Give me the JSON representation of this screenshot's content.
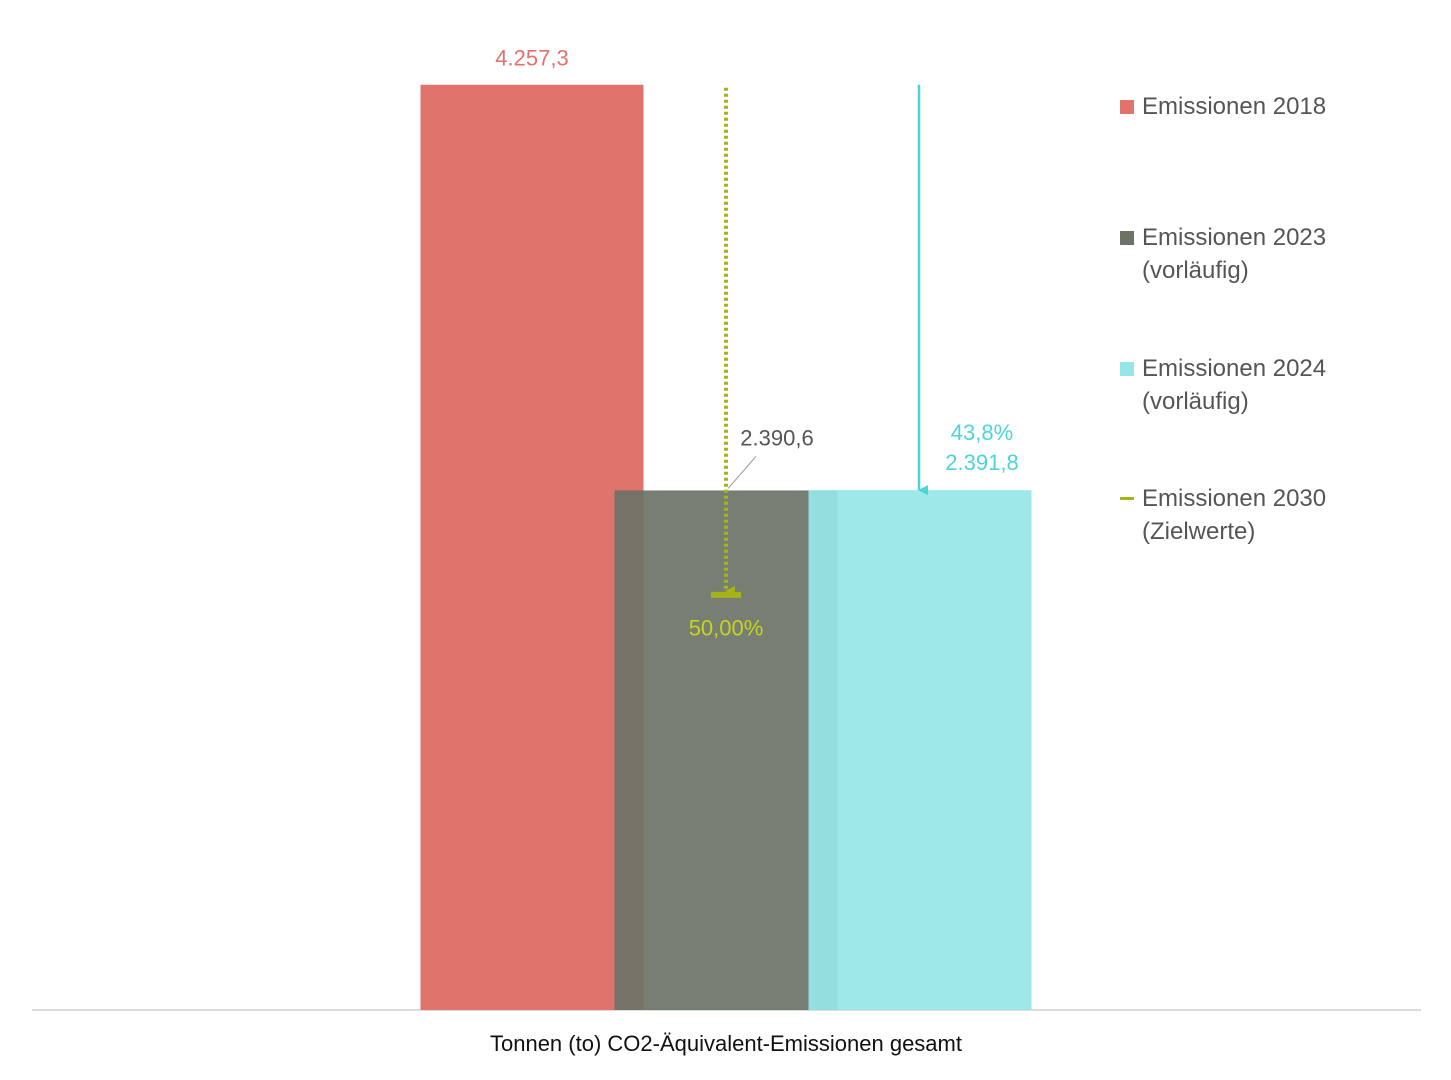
{
  "chart_data": {
    "type": "bar",
    "category": "Tonnen (to) CO2-Äquivalent-Emissionen gesamt",
    "ylim": [
      0,
      4500
    ],
    "series": [
      {
        "name": "Emissionen 2018",
        "color": "#e0736b",
        "values": [
          4257.3
        ],
        "value_labels": [
          "4.257,3"
        ]
      },
      {
        "name": "Emissionen 2023 (vorläufig)",
        "color": "#6b7367",
        "values": [
          2390.6
        ],
        "value_labels": [
          "2.390,6"
        ]
      },
      {
        "name": "Emissionen 2024 (vorläufig)",
        "color": "#96e6e8",
        "values": [
          2391.8
        ],
        "value_labels": [
          "2.391,8"
        ],
        "annotation": "43,8%"
      },
      {
        "name": "Emissionen 2030 (Zielwerte)",
        "color": "#a6b418",
        "values": [
          1910
        ],
        "annotation": "50,00%"
      }
    ]
  }
}
